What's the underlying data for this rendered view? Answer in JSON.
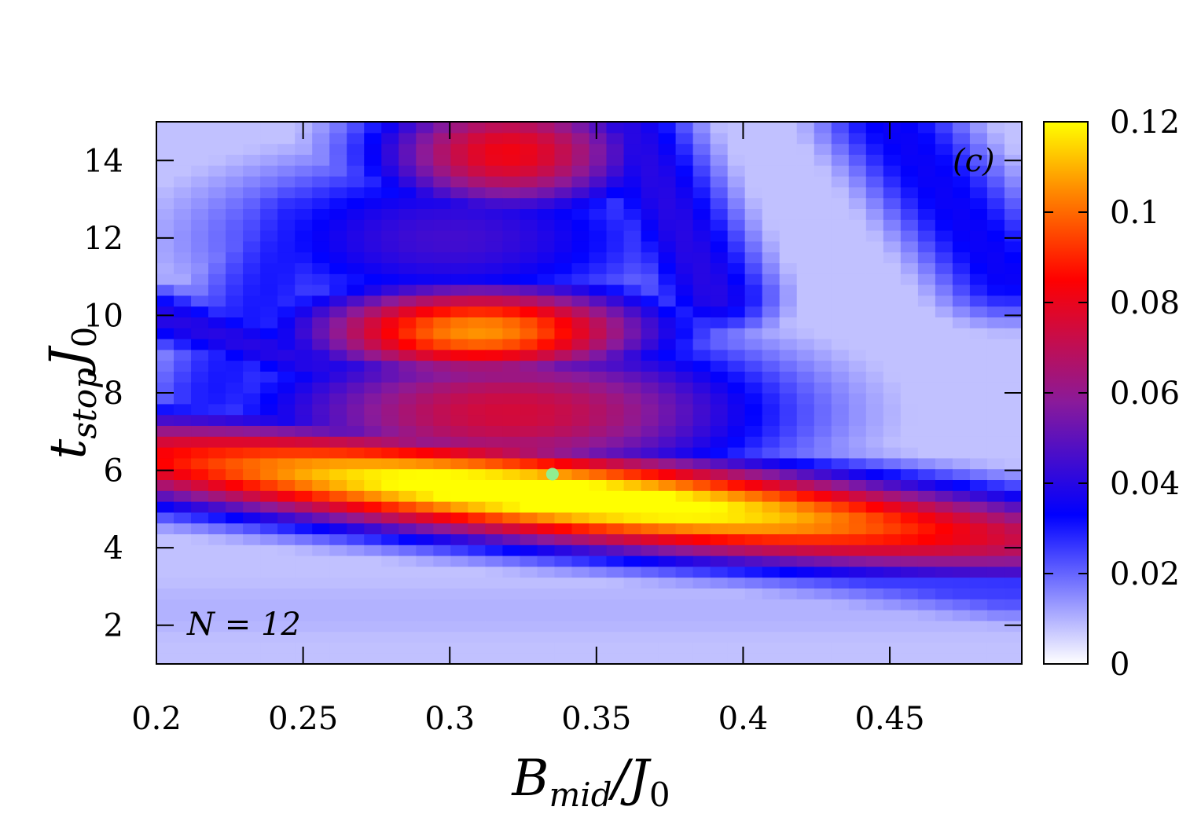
{
  "chart_data": {
    "type": "heatmap",
    "panel_label": "(c)",
    "annotation": "N = 12",
    "xlabel": {
      "main": "B",
      "sub": "mid",
      "divider": "/J",
      "sub2": "0"
    },
    "ylabel": {
      "main": "t",
      "sub": "stop",
      "tail": "J",
      "sub2": "0"
    },
    "xlim": [
      0.2,
      0.495
    ],
    "ylim": [
      1,
      15
    ],
    "x_ticks": [
      0.2,
      0.25,
      0.3,
      0.35,
      0.4,
      0.45
    ],
    "x_tick_labels": [
      "0.2",
      "0.25",
      "0.3",
      "0.35",
      "0.4",
      "0.45"
    ],
    "y_ticks": [
      2,
      4,
      6,
      8,
      10,
      12,
      14
    ],
    "y_tick_labels": [
      "2",
      "4",
      "6",
      "8",
      "10",
      "12",
      "14"
    ],
    "colorbar": {
      "range": [
        0,
        0.12
      ],
      "ticks": [
        0,
        0.02,
        0.04,
        0.06,
        0.08,
        0.1,
        0.12
      ],
      "tick_labels": [
        "0",
        "0.02",
        "0.04",
        "0.06",
        "0.08",
        "0.1",
        "0.12"
      ],
      "stops": [
        {
          "v": 0.0,
          "color": "#ffffff"
        },
        {
          "v": 0.033,
          "color": "#0000ff"
        },
        {
          "v": 0.058,
          "color": "#8a1a9a"
        },
        {
          "v": 0.085,
          "color": "#ff0000"
        },
        {
          "v": 0.105,
          "color": "#ff8c00"
        },
        {
          "v": 0.12,
          "color": "#ffff00"
        }
      ]
    },
    "grid": false,
    "marker": {
      "x": 0.335,
      "y": 5.9,
      "color": "#90ee90"
    },
    "grid_size": {
      "nx": 50,
      "ny": 50
    },
    "features": [
      {
        "type": "ridge",
        "x0": 0.2,
        "y0": 6.3,
        "x1": 0.5,
        "y1": 4.2,
        "amp": 0.11,
        "width": 0.9,
        "center_x": 0.335,
        "spread_x": 0.13
      },
      {
        "type": "blob",
        "x": 0.31,
        "y": 9.6,
        "amp": 0.106,
        "sx": 0.045,
        "sy": 0.9
      },
      {
        "type": "blob",
        "x": 0.32,
        "y": 7.5,
        "amp": 0.075,
        "sx": 0.065,
        "sy": 1.5
      },
      {
        "type": "blob",
        "x": 0.32,
        "y": 14.2,
        "amp": 0.082,
        "sx": 0.035,
        "sy": 1.2
      },
      {
        "type": "blob",
        "x": 0.3,
        "y": 12.0,
        "amp": 0.045,
        "sx": 0.06,
        "sy": 1.6
      },
      {
        "type": "blob",
        "x": 0.44,
        "y": 4.8,
        "amp": 0.055,
        "sx": 0.06,
        "sy": 0.8
      },
      {
        "type": "ridge_blue",
        "x0": 0.2,
        "y0": 10.0,
        "x1": 0.49,
        "y1": 3.3,
        "amp": 0.04,
        "width": 0.6
      },
      {
        "type": "ridge_blue",
        "x0": 0.2,
        "y0": 6.3,
        "x1": 0.49,
        "y1": 3.4,
        "amp": 0.035,
        "width": 0.9
      },
      {
        "type": "ridge_blue",
        "x0": 0.36,
        "y0": 15,
        "x1": 0.39,
        "y1": 10.5,
        "amp": 0.04,
        "width": 0.8
      },
      {
        "type": "ridge_blue",
        "x0": 0.45,
        "y0": 15,
        "x1": 0.49,
        "y1": 11.0,
        "amp": 0.035,
        "width": 0.9
      },
      {
        "type": "ridge_blue",
        "x0": 0.22,
        "y0": 8.0,
        "x1": 0.25,
        "y1": 12.5,
        "amp": 0.03,
        "width": 1.0
      },
      {
        "type": "band",
        "y": 2.4,
        "width": 1.2,
        "amp": 0.01
      }
    ]
  }
}
